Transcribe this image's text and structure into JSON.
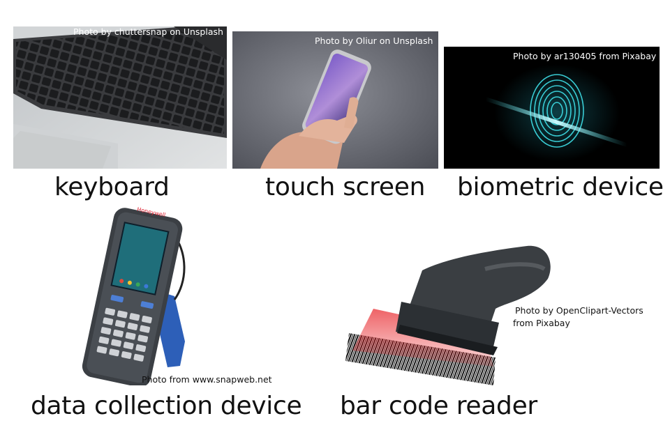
{
  "items": [
    {
      "label": "keyboard",
      "credit": "Photo by chuttersnap on Unsplash"
    },
    {
      "label": "touch screen",
      "credit": "Photo by Oliur on Unsplash"
    },
    {
      "label": "biometric device",
      "credit": "Photo by ar130405 from Pixabay"
    },
    {
      "label": "data collection device",
      "credit": "Photo from www.snapweb.net"
    },
    {
      "label": "bar code reader",
      "credit_line1": "Photo by OpenClipart-Vectors",
      "credit_line2": "from Pixabay"
    }
  ],
  "logo_text": "Honeywell",
  "colors": {
    "fingerprint": "#3fe0e8",
    "laser": "#e8262b",
    "scanner_grip": "#2d5fb8"
  }
}
